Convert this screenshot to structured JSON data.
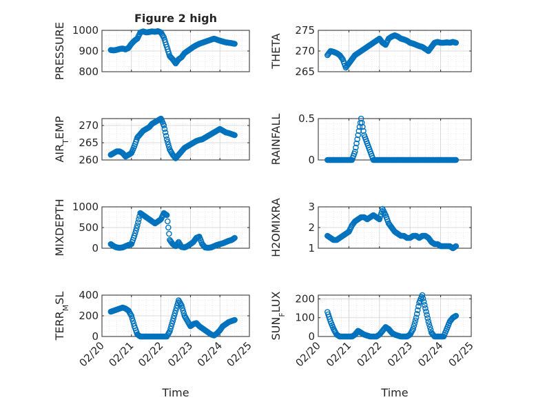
{
  "figure": {
    "title": "Figure 2 high",
    "marker_color": "#0072BD"
  },
  "chart_data": [
    {
      "type": "scatter",
      "panel": "left-1",
      "title": "Figure 2 high",
      "ylabel": "PRESSURE",
      "ylim": [
        800,
        1000
      ],
      "yticks": [
        "800",
        "900",
        "1000"
      ],
      "xlim": [
        "02/20",
        "02/25"
      ],
      "xticks": [
        "02/20",
        "02/21",
        "02/22",
        "02/23",
        "02/24",
        "02/25"
      ],
      "x_days": [
        0.3,
        0.4,
        0.5,
        0.6,
        0.7,
        0.8,
        0.9,
        1.0,
        1.1,
        1.2,
        1.3,
        1.4,
        1.5,
        1.6,
        1.7,
        1.8,
        1.9,
        2.0,
        2.1,
        2.2,
        2.3,
        2.4,
        2.5,
        2.6,
        2.7,
        2.8,
        2.9,
        3.0,
        3.1,
        3.2,
        3.3,
        3.4,
        3.5,
        3.6,
        3.7,
        3.8,
        3.9,
        4.0,
        4.1,
        4.2,
        4.3,
        4.4,
        4.5
      ],
      "values": [
        905,
        903,
        906,
        910,
        912,
        908,
        915,
        935,
        950,
        960,
        990,
        995,
        990,
        992,
        995,
        993,
        996,
        990,
        965,
        920,
        875,
        860,
        840,
        860,
        870,
        890,
        900,
        910,
        920,
        928,
        935,
        940,
        945,
        950,
        955,
        960,
        955,
        950,
        946,
        942,
        940,
        938,
        935
      ]
    },
    {
      "type": "scatter",
      "panel": "right-1",
      "ylabel": "THETA",
      "ylim": [
        265,
        275
      ],
      "yticks": [
        "265",
        "270",
        "275"
      ],
      "xlim": [
        "02/20",
        "02/25"
      ],
      "xticks": [
        "02/20",
        "02/21",
        "02/22",
        "02/23",
        "02/24",
        "02/25"
      ],
      "x_days": [
        0.3,
        0.4,
        0.5,
        0.6,
        0.7,
        0.8,
        0.9,
        1.0,
        1.1,
        1.2,
        1.3,
        1.4,
        1.5,
        1.6,
        1.7,
        1.8,
        1.9,
        2.0,
        2.1,
        2.2,
        2.3,
        2.4,
        2.5,
        2.6,
        2.7,
        2.8,
        2.9,
        3.0,
        3.1,
        3.2,
        3.3,
        3.4,
        3.5,
        3.6,
        3.7,
        3.8,
        3.9,
        4.0,
        4.1,
        4.2,
        4.3,
        4.4,
        4.5
      ],
      "values": [
        269,
        270,
        269.8,
        269.5,
        269,
        268,
        266,
        267,
        268,
        269,
        269.5,
        270,
        270.5,
        271,
        271.5,
        272,
        272.5,
        273,
        272,
        271.5,
        273,
        273.5,
        273.8,
        273.5,
        273,
        272.8,
        272.5,
        272,
        271.8,
        271.5,
        271.2,
        271,
        270.5,
        270,
        271,
        272,
        272.2,
        272,
        272,
        272.1,
        272,
        272.2,
        272
      ]
    },
    {
      "type": "scatter",
      "panel": "left-2",
      "ylabel": "AIR_TEMP",
      "ylim": [
        260,
        272
      ],
      "yticks": [
        "260",
        "265",
        "270"
      ],
      "xlim": [
        "02/20",
        "02/25"
      ],
      "xticks": [
        "02/20",
        "02/21",
        "02/22",
        "02/23",
        "02/24",
        "02/25"
      ],
      "x_days": [
        0.3,
        0.4,
        0.5,
        0.6,
        0.7,
        0.8,
        0.9,
        1.0,
        1.1,
        1.2,
        1.3,
        1.4,
        1.5,
        1.6,
        1.7,
        1.8,
        1.9,
        2.0,
        2.1,
        2.2,
        2.3,
        2.4,
        2.5,
        2.6,
        2.7,
        2.8,
        2.9,
        3.0,
        3.1,
        3.2,
        3.3,
        3.4,
        3.5,
        3.6,
        3.7,
        3.8,
        3.9,
        4.0,
        4.1,
        4.2,
        4.3,
        4.4,
        4.5
      ],
      "values": [
        261.5,
        262,
        262.5,
        262.5,
        262,
        261,
        261.5,
        262,
        264,
        266.5,
        267.5,
        268.5,
        269,
        269.5,
        270.5,
        271,
        271.5,
        272,
        270,
        266,
        263,
        261.5,
        260.5,
        261.5,
        262.5,
        263.5,
        264,
        264.5,
        265,
        265.5,
        265.8,
        266,
        266.5,
        267,
        267.5,
        268,
        268.5,
        269,
        268.5,
        268,
        267.8,
        267.5,
        267.2
      ]
    },
    {
      "type": "scatter",
      "panel": "right-2",
      "ylabel": "RAINFALL",
      "ylim": [
        0,
        0.5
      ],
      "yticks": [
        "0",
        "0.5"
      ],
      "xlim": [
        "02/20",
        "02/25"
      ],
      "xticks": [
        "02/20",
        "02/21",
        "02/22",
        "02/23",
        "02/24",
        "02/25"
      ],
      "x_days": [
        0.3,
        0.4,
        0.5,
        0.6,
        0.7,
        0.8,
        0.9,
        1.0,
        1.1,
        1.2,
        1.3,
        1.4,
        1.5,
        1.6,
        1.7,
        1.8,
        1.9,
        2.0,
        2.1,
        2.2,
        2.3,
        2.4,
        2.5,
        2.6,
        2.7,
        2.8,
        2.9,
        3.0,
        3.1,
        3.2,
        3.3,
        3.4,
        3.5,
        3.6,
        3.7,
        3.8,
        3.9,
        4.0,
        4.1,
        4.2,
        4.3,
        4.4,
        4.5
      ],
      "values": [
        0,
        0,
        0,
        0,
        0,
        0,
        0,
        0,
        0,
        0.1,
        0.3,
        0.5,
        0.3,
        0.2,
        0.1,
        0,
        0,
        0,
        0,
        0,
        0,
        0,
        0,
        0,
        0,
        0,
        0,
        0,
        0,
        0,
        0,
        0,
        0,
        0,
        0,
        0,
        0,
        0,
        0,
        0,
        0,
        0,
        0
      ]
    },
    {
      "type": "scatter",
      "panel": "left-3",
      "ylabel": "MIXDEPTH",
      "ylim": [
        0,
        1000
      ],
      "yticks": [
        "0",
        "500",
        "1000"
      ],
      "xlim": [
        "02/20",
        "02/25"
      ],
      "xticks": [
        "02/20",
        "02/21",
        "02/22",
        "02/23",
        "02/24",
        "02/25"
      ],
      "x_days": [
        0.3,
        0.4,
        0.5,
        0.6,
        0.7,
        0.8,
        0.9,
        1.0,
        1.1,
        1.2,
        1.3,
        1.4,
        1.5,
        1.6,
        1.7,
        1.8,
        1.9,
        2.0,
        2.1,
        2.2,
        2.3,
        2.4,
        2.5,
        2.6,
        2.7,
        2.8,
        2.9,
        3.0,
        3.1,
        3.2,
        3.3,
        3.4,
        3.5,
        3.6,
        3.7,
        3.8,
        3.9,
        4.0,
        4.1,
        4.2,
        4.3,
        4.4,
        4.5
      ],
      "values": [
        100,
        50,
        20,
        10,
        20,
        50,
        80,
        100,
        300,
        550,
        850,
        800,
        750,
        700,
        650,
        600,
        650,
        700,
        850,
        800,
        200,
        100,
        50,
        150,
        30,
        20,
        50,
        100,
        150,
        250,
        280,
        100,
        20,
        10,
        20,
        50,
        80,
        100,
        120,
        150,
        180,
        200,
        250
      ]
    },
    {
      "type": "scatter",
      "panel": "right-3",
      "ylabel": "H2OMIXRA",
      "ylim": [
        1,
        3
      ],
      "yticks": [
        "1",
        "2",
        "3"
      ],
      "xlim": [
        "02/20",
        "02/25"
      ],
      "xticks": [
        "02/20",
        "02/21",
        "02/22",
        "02/23",
        "02/24",
        "02/25"
      ],
      "x_days": [
        0.3,
        0.4,
        0.5,
        0.6,
        0.7,
        0.8,
        0.9,
        1.0,
        1.1,
        1.2,
        1.3,
        1.4,
        1.5,
        1.6,
        1.7,
        1.8,
        1.9,
        2.0,
        2.1,
        2.2,
        2.3,
        2.4,
        2.5,
        2.6,
        2.7,
        2.8,
        2.9,
        3.0,
        3.1,
        3.2,
        3.3,
        3.4,
        3.5,
        3.6,
        3.7,
        3.8,
        3.9,
        4.0,
        4.1,
        4.2,
        4.3,
        4.4,
        4.5
      ],
      "values": [
        1.6,
        1.5,
        1.4,
        1.4,
        1.5,
        1.6,
        1.7,
        1.8,
        2.1,
        2.3,
        2.4,
        2.5,
        2.5,
        2.4,
        2.5,
        2.6,
        2.5,
        2.4,
        2.9,
        2.6,
        2.2,
        2.0,
        1.8,
        1.7,
        1.6,
        1.6,
        1.5,
        1.5,
        1.6,
        1.6,
        1.5,
        1.6,
        1.6,
        1.5,
        1.3,
        1.2,
        1.2,
        1.1,
        1.1,
        1.1,
        1.1,
        1.0,
        1.1
      ]
    },
    {
      "type": "scatter",
      "panel": "left-4",
      "ylabel": "TERR_MSL",
      "ylim": [
        0,
        400
      ],
      "yticks": [
        "0",
        "200",
        "400"
      ],
      "xlim": [
        "02/20",
        "02/25"
      ],
      "xticks": [
        "02/20",
        "02/21",
        "02/22",
        "02/23",
        "02/24",
        "02/25"
      ],
      "xlabel": "Time",
      "x_days": [
        0.3,
        0.4,
        0.5,
        0.6,
        0.7,
        0.8,
        0.9,
        1.0,
        1.1,
        1.2,
        1.3,
        1.4,
        1.5,
        1.6,
        1.7,
        1.8,
        1.9,
        2.0,
        2.1,
        2.2,
        2.3,
        2.4,
        2.5,
        2.6,
        2.7,
        2.8,
        2.9,
        3.0,
        3.1,
        3.2,
        3.3,
        3.4,
        3.5,
        3.6,
        3.7,
        3.8,
        3.9,
        4.0,
        4.1,
        4.2,
        4.3,
        4.4,
        4.5
      ],
      "values": [
        240,
        250,
        260,
        270,
        280,
        270,
        250,
        200,
        100,
        20,
        0,
        0,
        0,
        0,
        0,
        0,
        0,
        0,
        0,
        0,
        50,
        150,
        250,
        350,
        300,
        200,
        150,
        100,
        120,
        130,
        100,
        80,
        60,
        40,
        20,
        10,
        30,
        60,
        100,
        120,
        140,
        150,
        160
      ]
    },
    {
      "type": "scatter",
      "panel": "right-4",
      "ylabel": "SUN_FLUX",
      "ylim": [
        0,
        220
      ],
      "yticks": [
        "0",
        "100",
        "200"
      ],
      "xlim": [
        "02/20",
        "02/25"
      ],
      "xticks": [
        "02/20",
        "02/21",
        "02/22",
        "02/23",
        "02/24",
        "02/25"
      ],
      "xlabel": "Time",
      "x_days": [
        0.3,
        0.4,
        0.5,
        0.6,
        0.7,
        0.8,
        0.9,
        1.0,
        1.1,
        1.2,
        1.3,
        1.4,
        1.5,
        1.6,
        1.7,
        1.8,
        1.9,
        2.0,
        2.1,
        2.2,
        2.3,
        2.4,
        2.5,
        2.6,
        2.7,
        2.8,
        2.9,
        3.0,
        3.1,
        3.2,
        3.3,
        3.4,
        3.5,
        3.6,
        3.7,
        3.8,
        3.9,
        4.0,
        4.1,
        4.2,
        4.3,
        4.4,
        4.5
      ],
      "values": [
        130,
        80,
        40,
        10,
        0,
        0,
        0,
        0,
        0,
        10,
        30,
        20,
        10,
        5,
        0,
        0,
        0,
        10,
        30,
        50,
        40,
        20,
        10,
        5,
        0,
        0,
        0,
        10,
        40,
        100,
        180,
        220,
        150,
        80,
        20,
        0,
        0,
        0,
        0,
        40,
        80,
        100,
        110
      ]
    }
  ]
}
